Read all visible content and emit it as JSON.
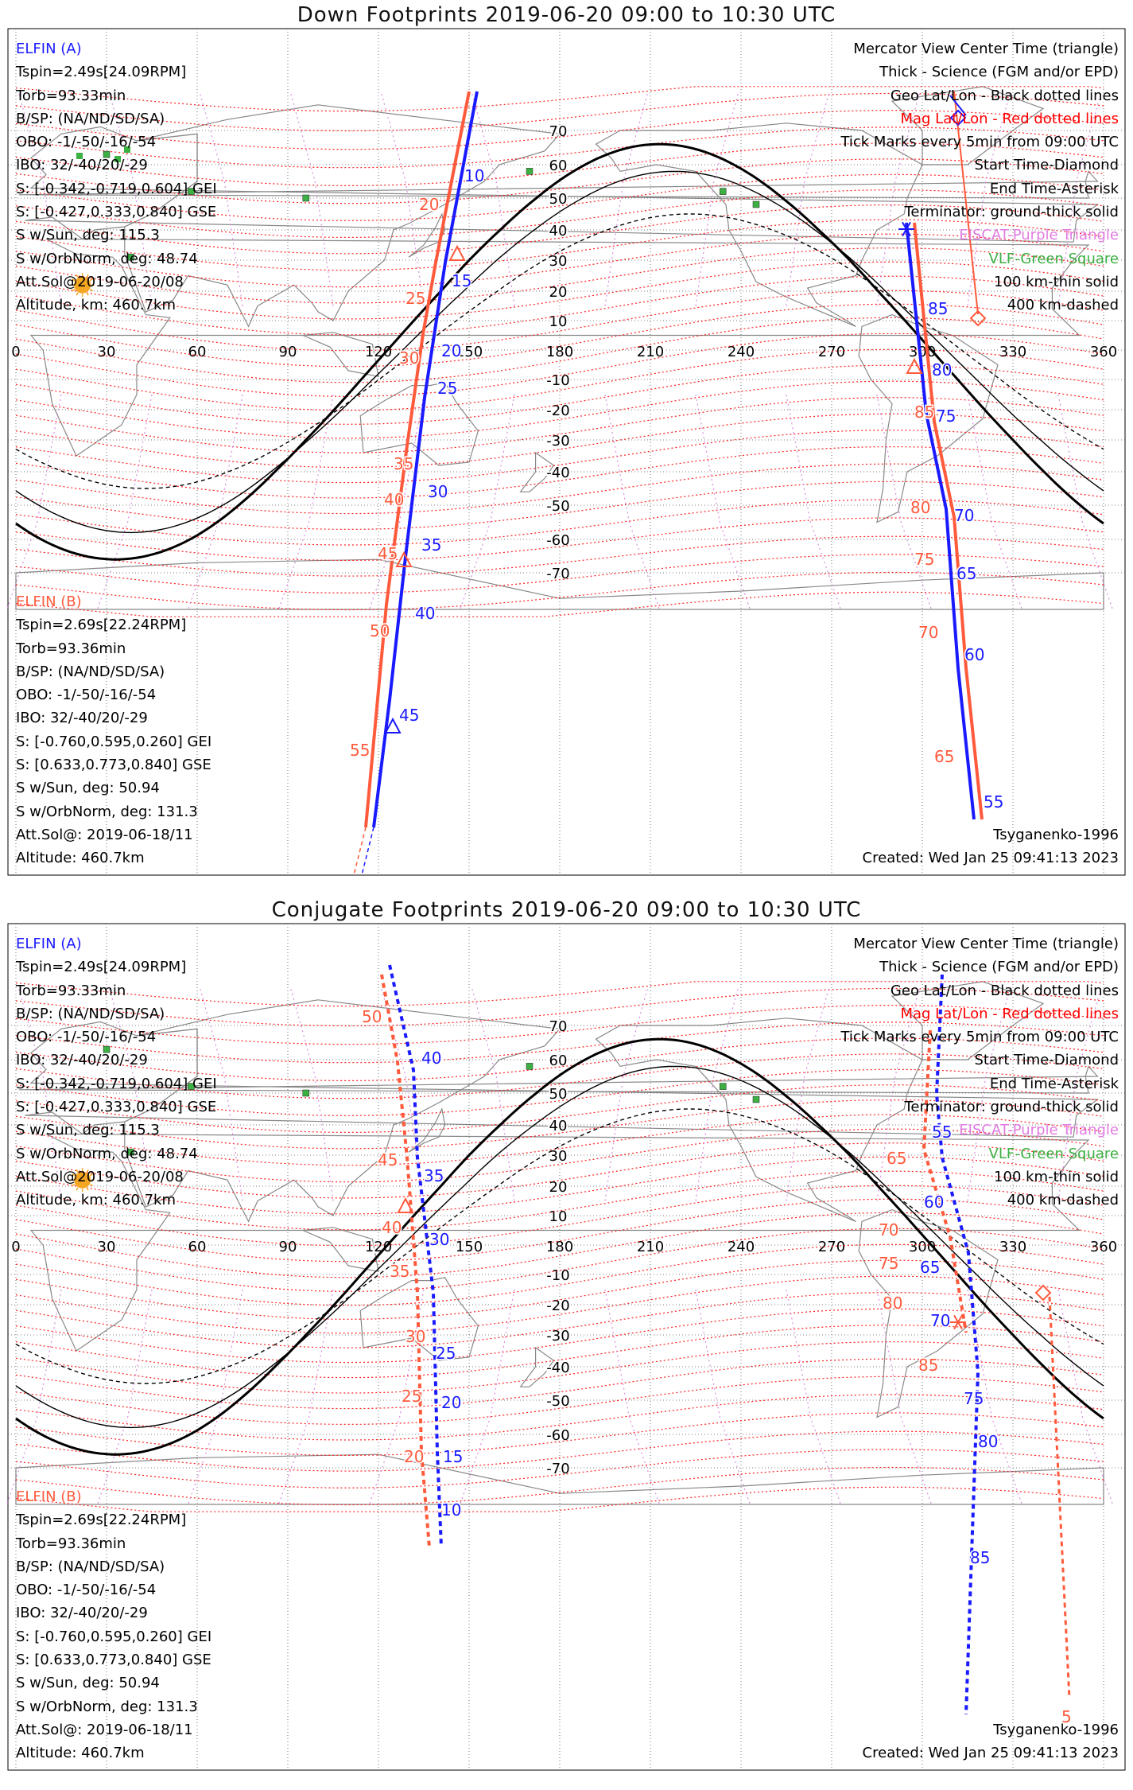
{
  "panels": [
    {
      "title": "Down Footprints 2019-06-20 09:00 to 10:30 UTC",
      "kind": "down"
    },
    {
      "title": "Conjugate Footprints 2019-06-20 09:00 to 10:30 UTC",
      "kind": "conjugate"
    }
  ],
  "elfin_a": {
    "header": "ELFIN (A)",
    "lines": [
      "Tspin=2.49s[24.09RPM]",
      "Torb=93.33min",
      "B/SP: (NA/ND/SD/SA)",
      "OBO: -1/-50/-16/-54",
      "IBO: 32/-40/20/-29",
      "S: [-0.342,-0.719,0.604] GEI",
      "S: [-0.427,0.333,0.840] GSE",
      "S w/Sun, deg: 115.3",
      "S w/OrbNorm, deg: 48.74",
      "Att.Sol@2019-06-20/08",
      "Altitude, km: 460.7km"
    ],
    "color": "#1a1aff"
  },
  "elfin_b": {
    "header": "ELFIN (B)",
    "lines": [
      "Tspin=2.69s[22.24RPM]",
      "Torb=93.36min",
      "B/SP: (NA/ND/SD/SA)",
      "OBO: -1/-50/-16/-54",
      "IBO: 32/-40/20/-29",
      "S: [-0.760,0.595,0.260] GEI",
      "S: [0.633,0.773,0.840] GSE",
      "S w/Sun, deg: 50.94",
      "S w/OrbNorm, deg: 131.3",
      "Att.Sol@: 2019-06-18/11",
      "Altitude: 460.7km"
    ],
    "color": "#ff5a3c"
  },
  "legend": [
    {
      "text": "Mercator View Center Time (triangle)",
      "color": "#000000"
    },
    {
      "text": "Thick - Science (FGM and/or EPD)",
      "color": "#000000"
    },
    {
      "text": "Geo Lat/Lon - Black dotted lines",
      "color": "#000000"
    },
    {
      "text": "Mag Lat/Lon - Red dotted lines",
      "color": "#ff0000"
    },
    {
      "text": "Tick Marks every 5min from 09:00 UTC",
      "color": "#000000"
    },
    {
      "text": "Start Time-Diamond",
      "color": "#000000"
    },
    {
      "text": "End Time-Asterisk",
      "color": "#000000"
    },
    {
      "text": "Terminator: ground-thick solid",
      "color": "#000000"
    },
    {
      "text": "EISCAT-Purple Triangle",
      "color": "#e07be0"
    },
    {
      "text": "VLF-Green Square",
      "color": "#3cb043"
    },
    {
      "text": "100 km-thin solid",
      "color": "#000000"
    },
    {
      "text": "400 km-dashed",
      "color": "#000000"
    }
  ],
  "credits": {
    "model": "Tsyganenko-1996",
    "created": "Created: Wed Jan 25 09:41:13 2023"
  },
  "axes": {
    "lon_ticks": [
      "0",
      "30",
      "60",
      "90",
      "120",
      "150",
      "180",
      "210",
      "240",
      "270",
      "300",
      "330",
      "360"
    ],
    "lat_ticks": [
      "70",
      "60",
      "50",
      "40",
      "30",
      "20",
      "10",
      "-10",
      "-20",
      "-30",
      "-40",
      "-50",
      "-60",
      "-70"
    ]
  },
  "track_labels": {
    "down_a": [
      "10",
      "15",
      "20",
      "25",
      "30",
      "35",
      "40",
      "45",
      "55",
      "60",
      "65",
      "70",
      "75",
      "80",
      "85"
    ],
    "down_b": [
      "20",
      "25",
      "30",
      "35",
      "40",
      "45",
      "50",
      "55",
      "65",
      "70",
      "75",
      "80",
      "85"
    ],
    "conj_a": [
      "40",
      "35",
      "30",
      "25",
      "20",
      "15",
      "10",
      "55",
      "60",
      "65",
      "70",
      "75",
      "80",
      "85"
    ],
    "conj_b": [
      "50",
      "45",
      "40",
      "35",
      "30",
      "25",
      "20",
      "65",
      "70",
      "75",
      "80",
      "85",
      "5"
    ]
  },
  "colors": {
    "elfin_a": "#1a1aff",
    "elfin_b": "#ff5a3c",
    "geo_grid": "#555555",
    "mag_grid": "#ff2020",
    "eiscat": "#e07be0",
    "vlf": "#3cb043",
    "terminator": "#000000",
    "sun": "#f5a623"
  },
  "icons": {
    "sun": "sun-icon",
    "vlf_station": "square-marker-icon",
    "start": "diamond-marker-icon",
    "end": "asterisk-marker-icon",
    "center": "triangle-marker-icon"
  }
}
